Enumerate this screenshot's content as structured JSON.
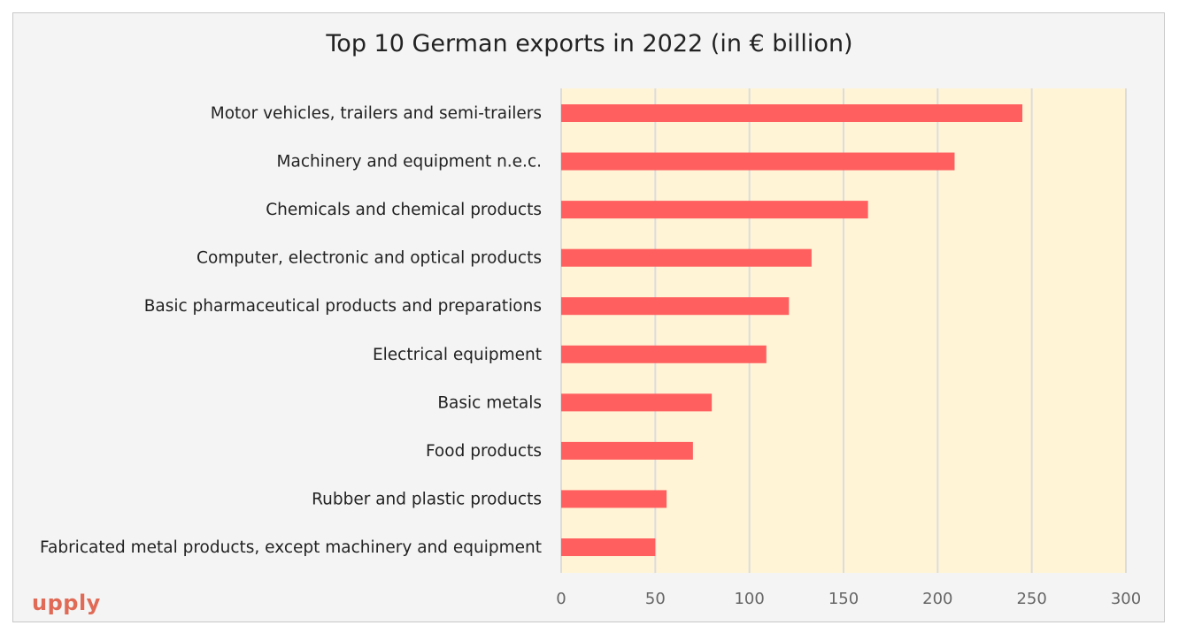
{
  "chart_data": {
    "type": "bar",
    "orientation": "horizontal",
    "title": "Top 10 German exports in 2022 (in € billion)",
    "xlabel": "",
    "ylabel": "",
    "categories": [
      "Motor vehicles, trailers and semi-trailers",
      "Machinery and equipment n.e.c.",
      "Chemicals and chemical products",
      "Computer, electronic and optical products",
      "Basic pharmaceutical products and preparations",
      "Electrical equipment",
      "Basic metals",
      "Food products",
      "Rubber and plastic products",
      "Fabricated metal products, except machinery and equipment"
    ],
    "values": [
      245,
      209,
      163,
      133,
      121,
      109,
      80,
      70,
      56,
      50
    ],
    "xlim": [
      0,
      300
    ],
    "xticks": [
      "0",
      "50",
      "100",
      "150",
      "200",
      "250",
      "300"
    ],
    "grid": "vertical",
    "legend": "none",
    "colors": {
      "bar": "#ff5f5f",
      "plot_background": "#fff4d6",
      "grid": "#dcdcdc",
      "background": "#f4f4f4"
    }
  },
  "branding": {
    "logo_text": "upply",
    "logo_color": "#e06a55"
  }
}
